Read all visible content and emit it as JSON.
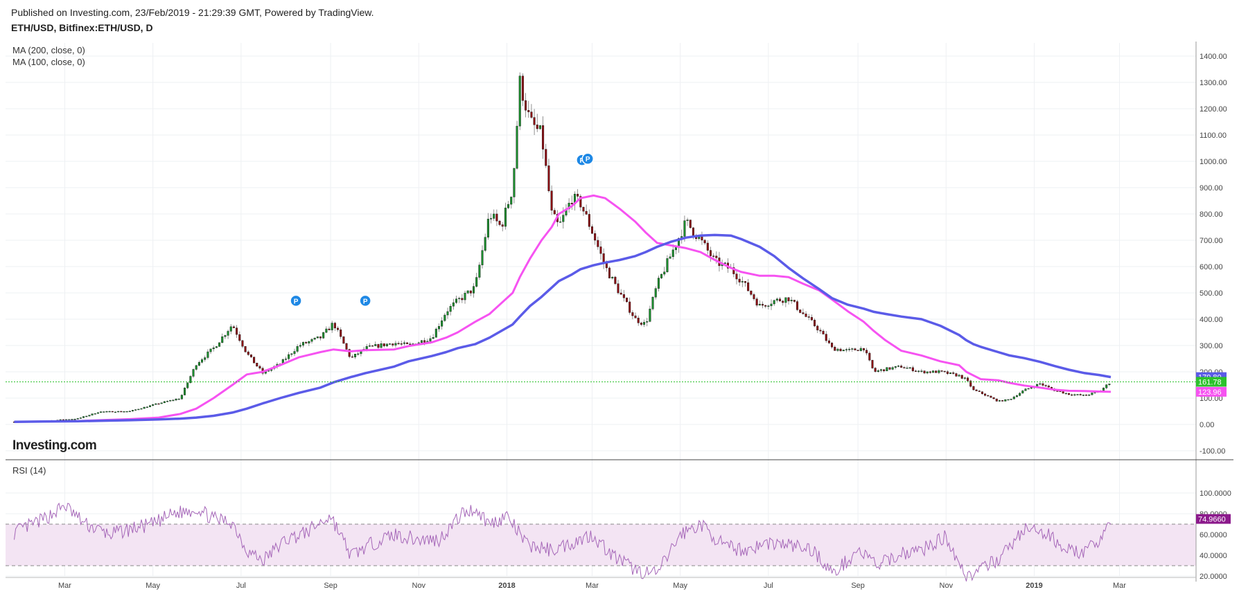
{
  "header": {
    "published": "Published on Investing.com, 23/Feb/2019 - 21:29:39 GMT, Powered by TradingView.",
    "symbol": "ETH/USD, Bitfinex:ETH/USD, D"
  },
  "indicators": {
    "ma200": "MA (200, close, 0)",
    "ma100": "MA (100, close, 0)",
    "rsi": "RSI (14)"
  },
  "logo": "Investing.com",
  "colors": {
    "up": "#1b8f2e",
    "down": "#8b0d12",
    "ma200": "#5b5be8",
    "ma100": "#f653f1",
    "rsi_line": "#a566b8",
    "rsi_band": "#f3e4f3",
    "price_line": "#2cc22c"
  },
  "x_axis": {
    "labels": [
      "Mar",
      "May",
      "Jul",
      "Sep",
      "Nov",
      "2018",
      "Mar",
      "May",
      "Jul",
      "Sep",
      "Nov",
      "2019",
      "Mar"
    ],
    "bold": [
      "2018",
      "2019"
    ]
  },
  "chart_data": [
    {
      "type": "candlestick",
      "title": "ETH/USD, Bitfinex:ETH/USD, D",
      "ylim": [
        -130,
        1440
      ],
      "y_ticks": [
        "-100.00",
        "0.00",
        "100.00",
        "200.00",
        "300.00",
        "400.00",
        "500.00",
        "600.00",
        "700.00",
        "800.00",
        "900.00",
        "1000.00",
        "1100.00",
        "1200.00",
        "1300.00",
        "1400.00"
      ],
      "tick_values": [
        -100,
        0,
        100,
        200,
        300,
        400,
        500,
        600,
        700,
        800,
        900,
        1000,
        1100,
        1200,
        1300,
        1400
      ],
      "x_dates": [
        "2017-01-25",
        "2017-02-15",
        "2017-03-10",
        "2017-03-25",
        "2017-04-15",
        "2017-05-05",
        "2017-05-20",
        "2017-05-31",
        "2017-06-12",
        "2017-06-25",
        "2017-07-05",
        "2017-07-16",
        "2017-07-28",
        "2017-08-10",
        "2017-08-25",
        "2017-09-03",
        "2017-09-15",
        "2017-09-25",
        "2017-10-15",
        "2017-10-25",
        "2017-11-10",
        "2017-11-20",
        "2017-11-28",
        "2017-12-10",
        "2017-12-20",
        "2017-12-28",
        "2018-01-05",
        "2018-01-10",
        "2018-01-17",
        "2018-01-25",
        "2018-02-01",
        "2018-02-06",
        "2018-02-15",
        "2018-02-21",
        "2018-03-02",
        "2018-03-10",
        "2018-03-20",
        "2018-03-31",
        "2018-04-07",
        "2018-04-15",
        "2018-04-25",
        "2018-05-05",
        "2018-05-15",
        "2018-05-25",
        "2018-06-05",
        "2018-06-12",
        "2018-06-25",
        "2018-07-05",
        "2018-07-15",
        "2018-07-25",
        "2018-08-05",
        "2018-08-14",
        "2018-08-25",
        "2018-09-05",
        "2018-09-12",
        "2018-09-20",
        "2018-10-01",
        "2018-10-15",
        "2018-10-28",
        "2018-11-10",
        "2018-11-15",
        "2018-11-20",
        "2018-11-25",
        "2018-12-07",
        "2018-12-15",
        "2018-12-25",
        "2019-01-05",
        "2019-01-15",
        "2019-01-25",
        "2019-02-05",
        "2019-02-15",
        "2019-02-23"
      ],
      "close": [
        10,
        13,
        22,
        48,
        50,
        80,
        100,
        230,
        290,
        380,
        270,
        195,
        230,
        300,
        330,
        385,
        250,
        290,
        310,
        300,
        330,
        430,
        470,
        520,
        800,
        750,
        900,
        1300,
        1150,
        1100,
        800,
        750,
        860,
        840,
        720,
        600,
        500,
        400,
        380,
        530,
        650,
        770,
        700,
        620,
        590,
        550,
        450,
        470,
        480,
        420,
        360,
        290,
        280,
        290,
        200,
        210,
        220,
        200,
        200,
        185,
        170,
        130,
        120,
        88,
        95,
        130,
        155,
        130,
        115,
        110,
        125,
        162
      ],
      "ma200": [
        10,
        11,
        12,
        14,
        16,
        19,
        22,
        26,
        33,
        45,
        60,
        80,
        100,
        120,
        140,
        160,
        180,
        195,
        220,
        240,
        260,
        275,
        290,
        305,
        330,
        355,
        380,
        410,
        450,
        485,
        520,
        545,
        570,
        590,
        605,
        615,
        625,
        640,
        655,
        675,
        695,
        710,
        718,
        720,
        718,
        705,
        675,
        640,
        595,
        555,
        515,
        480,
        455,
        440,
        428,
        420,
        410,
        400,
        375,
        340,
        320,
        305,
        295,
        275,
        262,
        252,
        238,
        222,
        208,
        195,
        188,
        180
      ],
      "ma100": [
        10,
        11,
        13,
        16,
        20,
        26,
        40,
        60,
        100,
        150,
        190,
        200,
        225,
        255,
        275,
        285,
        278,
        282,
        285,
        298,
        312,
        330,
        350,
        390,
        420,
        460,
        500,
        560,
        630,
        700,
        750,
        800,
        830,
        860,
        870,
        860,
        820,
        770,
        730,
        690,
        680,
        670,
        655,
        625,
        595,
        580,
        565,
        565,
        560,
        535,
        510,
        475,
        430,
        390,
        355,
        320,
        280,
        262,
        240,
        225,
        200,
        186,
        172,
        168,
        158,
        148,
        140,
        132,
        128,
        127,
        125,
        124
      ]
    },
    {
      "type": "line",
      "title": "RSI (14)",
      "ylim": [
        10,
        102
      ],
      "y_ticks": [
        "20.0000",
        "40.0000",
        "60.0000",
        "80.0000",
        "100.0000"
      ],
      "tick_values": [
        20,
        40,
        60,
        80,
        100
      ],
      "bands": [
        30,
        70
      ],
      "x_dates": [
        "2017-01-25",
        "2017-02-15",
        "2017-03-01",
        "2017-03-15",
        "2017-04-01",
        "2017-04-15",
        "2017-05-01",
        "2017-05-15",
        "2017-06-01",
        "2017-06-12",
        "2017-06-25",
        "2017-07-05",
        "2017-07-16",
        "2017-08-01",
        "2017-08-15",
        "2017-09-01",
        "2017-09-15",
        "2017-10-01",
        "2017-10-15",
        "2017-11-01",
        "2017-11-15",
        "2017-12-01",
        "2017-12-10",
        "2017-12-20",
        "2018-01-01",
        "2018-01-15",
        "2018-02-01",
        "2018-02-15",
        "2018-03-01",
        "2018-03-15",
        "2018-04-01",
        "2018-04-15",
        "2018-05-01",
        "2018-05-15",
        "2018-06-01",
        "2018-06-15",
        "2018-07-01",
        "2018-07-15",
        "2018-08-01",
        "2018-08-15",
        "2018-09-01",
        "2018-09-15",
        "2018-10-01",
        "2018-10-15",
        "2018-11-01",
        "2018-11-15",
        "2018-11-25",
        "2018-12-10",
        "2018-12-25",
        "2019-01-10",
        "2019-01-25",
        "2019-02-05",
        "2019-02-15",
        "2019-02-23"
      ],
      "values": [
        62,
        75,
        88,
        70,
        60,
        65,
        70,
        80,
        85,
        75,
        72,
        45,
        35,
        55,
        62,
        78,
        40,
        52,
        60,
        55,
        55,
        80,
        85,
        70,
        78,
        50,
        45,
        52,
        60,
        40,
        25,
        22,
        60,
        70,
        48,
        45,
        52,
        50,
        45,
        22,
        45,
        30,
        42,
        45,
        58,
        20,
        25,
        40,
        65,
        60,
        45,
        42,
        55,
        75
      ],
      "last_label": "74.9660"
    }
  ],
  "price_labels": {
    "ma200": "179.80",
    "last": "161.78",
    "ma100": "123.96"
  },
  "markers": [
    "P",
    "P",
    "P",
    "P"
  ]
}
